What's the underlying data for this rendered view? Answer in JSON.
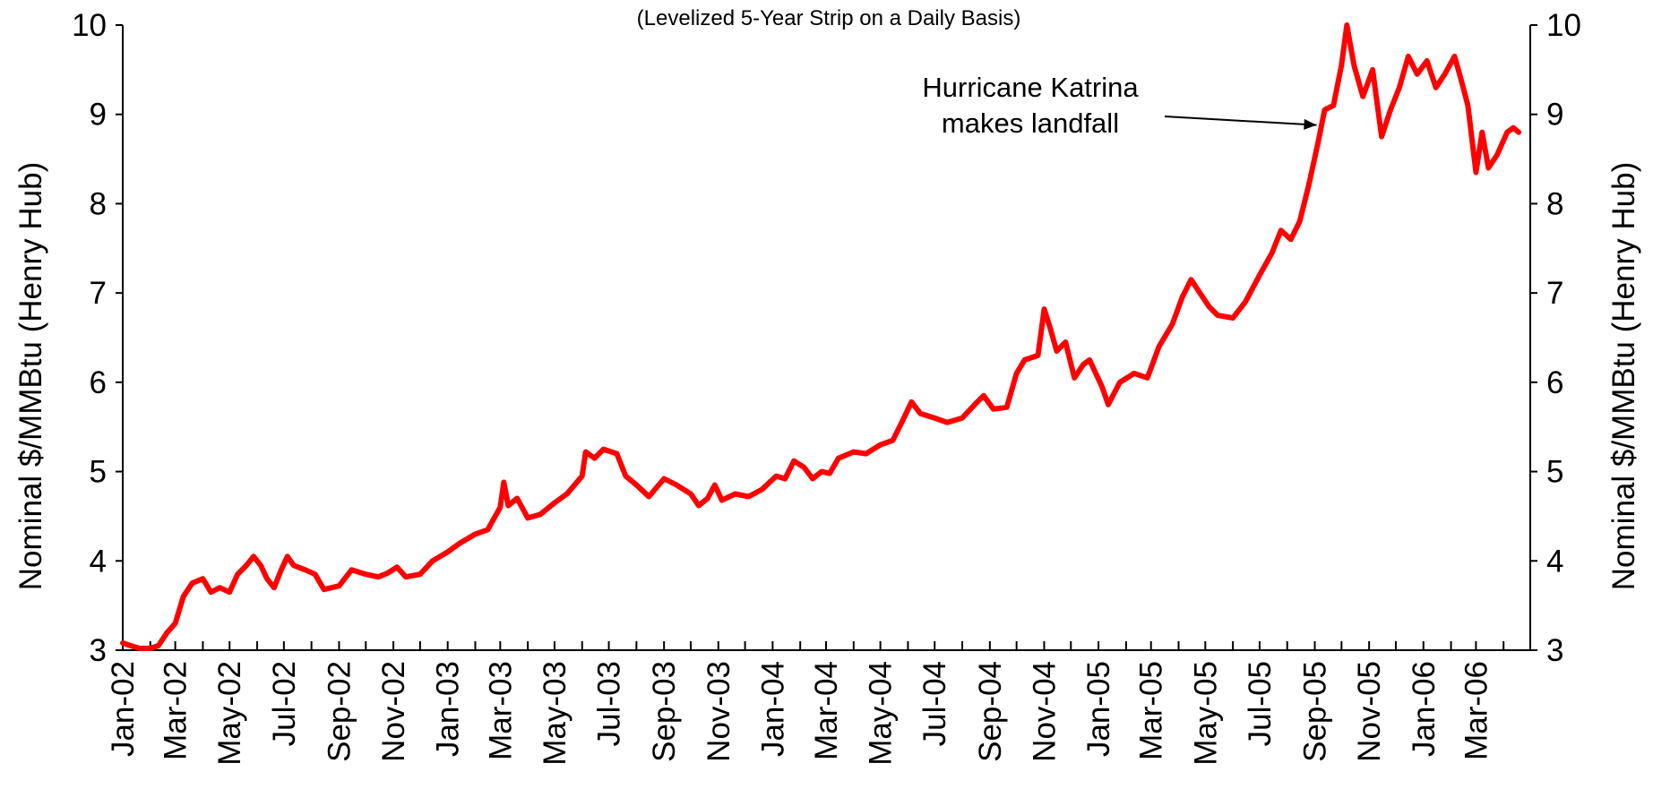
{
  "chart_data": {
    "type": "line",
    "subtitle": "(Levelized 5-Year Strip on a Daily Basis)",
    "ylabel": "Nominal $/MMBtu (Henry Hub)",
    "ylabel_right": "Nominal $/MMBtu (Henry Hub)",
    "xlabel": "",
    "ylim": [
      3,
      10
    ],
    "y_ticks": [
      "3",
      "4",
      "5",
      "6",
      "7",
      "8",
      "9",
      "10"
    ],
    "x_range": [
      "2002-01-01",
      "2006-05-01"
    ],
    "x_tick_labels": [
      "Jan-02",
      "Mar-02",
      "May-02",
      "Jul-02",
      "Sep-02",
      "Nov-02",
      "Jan-03",
      "Mar-03",
      "May-03",
      "Jul-03",
      "Sep-03",
      "Nov-03",
      "Jan-04",
      "Mar-04",
      "May-04",
      "Jul-04",
      "Sep-04",
      "Nov-04",
      "Jan-05",
      "Mar-05",
      "May-05",
      "Jul-05",
      "Sep-05",
      "Nov-05",
      "Jan-06",
      "Mar-06"
    ],
    "legend": "none",
    "grid": false,
    "series": [
      {
        "color": "#ff0000",
        "points": [
          [
            "2002-01-01",
            3.08
          ],
          [
            "2002-01-10",
            3.05
          ],
          [
            "2002-01-20",
            3.02
          ],
          [
            "2002-02-01",
            3.02
          ],
          [
            "2002-02-10",
            3.05
          ],
          [
            "2002-02-20",
            3.2
          ],
          [
            "2002-03-01",
            3.3
          ],
          [
            "2002-03-10",
            3.6
          ],
          [
            "2002-03-20",
            3.75
          ],
          [
            "2002-04-01",
            3.8
          ],
          [
            "2002-04-10",
            3.65
          ],
          [
            "2002-04-20",
            3.7
          ],
          [
            "2002-05-01",
            3.65
          ],
          [
            "2002-05-10",
            3.85
          ],
          [
            "2002-05-20",
            3.95
          ],
          [
            "2002-05-28",
            4.05
          ],
          [
            "2002-06-05",
            3.95
          ],
          [
            "2002-06-12",
            3.8
          ],
          [
            "2002-06-20",
            3.7
          ],
          [
            "2002-06-28",
            3.9
          ],
          [
            "2002-07-05",
            4.05
          ],
          [
            "2002-07-12",
            3.95
          ],
          [
            "2002-07-25",
            3.9
          ],
          [
            "2002-08-05",
            3.85
          ],
          [
            "2002-08-15",
            3.68
          ],
          [
            "2002-09-01",
            3.72
          ],
          [
            "2002-09-15",
            3.9
          ],
          [
            "2002-10-01",
            3.85
          ],
          [
            "2002-10-15",
            3.82
          ],
          [
            "2002-10-25",
            3.86
          ],
          [
            "2002-11-05",
            3.93
          ],
          [
            "2002-11-15",
            3.82
          ],
          [
            "2002-12-01",
            3.85
          ],
          [
            "2002-12-15",
            4.0
          ],
          [
            "2003-01-01",
            4.1
          ],
          [
            "2003-01-15",
            4.2
          ],
          [
            "2003-02-01",
            4.3
          ],
          [
            "2003-02-15",
            4.35
          ],
          [
            "2003-03-01",
            4.6
          ],
          [
            "2003-03-05",
            4.88
          ],
          [
            "2003-03-10",
            4.62
          ],
          [
            "2003-03-20",
            4.7
          ],
          [
            "2003-04-01",
            4.48
          ],
          [
            "2003-04-15",
            4.52
          ],
          [
            "2003-05-01",
            4.65
          ],
          [
            "2003-05-15",
            4.75
          ],
          [
            "2003-06-01",
            4.95
          ],
          [
            "2003-06-05",
            5.22
          ],
          [
            "2003-06-15",
            5.15
          ],
          [
            "2003-06-25",
            5.25
          ],
          [
            "2003-07-10",
            5.2
          ],
          [
            "2003-07-20",
            4.95
          ],
          [
            "2003-08-01",
            4.85
          ],
          [
            "2003-08-15",
            4.72
          ],
          [
            "2003-09-01",
            4.92
          ],
          [
            "2003-09-15",
            4.85
          ],
          [
            "2003-10-01",
            4.75
          ],
          [
            "2003-10-10",
            4.62
          ],
          [
            "2003-10-20",
            4.7
          ],
          [
            "2003-10-28",
            4.85
          ],
          [
            "2003-11-05",
            4.68
          ],
          [
            "2003-11-20",
            4.75
          ],
          [
            "2003-12-05",
            4.72
          ],
          [
            "2003-12-20",
            4.8
          ],
          [
            "2004-01-05",
            4.95
          ],
          [
            "2004-01-15",
            4.92
          ],
          [
            "2004-01-25",
            5.12
          ],
          [
            "2004-02-05",
            5.05
          ],
          [
            "2004-02-15",
            4.92
          ],
          [
            "2004-02-25",
            5.0
          ],
          [
            "2004-03-05",
            4.98
          ],
          [
            "2004-03-15",
            5.15
          ],
          [
            "2004-04-01",
            5.22
          ],
          [
            "2004-04-15",
            5.2
          ],
          [
            "2004-05-01",
            5.3
          ],
          [
            "2004-05-15",
            5.35
          ],
          [
            "2004-05-25",
            5.55
          ],
          [
            "2004-06-05",
            5.78
          ],
          [
            "2004-06-15",
            5.65
          ],
          [
            "2004-07-01",
            5.6
          ],
          [
            "2004-07-15",
            5.55
          ],
          [
            "2004-08-01",
            5.6
          ],
          [
            "2004-08-15",
            5.75
          ],
          [
            "2004-08-25",
            5.85
          ],
          [
            "2004-09-05",
            5.7
          ],
          [
            "2004-09-20",
            5.72
          ],
          [
            "2004-10-01",
            6.1
          ],
          [
            "2004-10-10",
            6.25
          ],
          [
            "2004-10-25",
            6.3
          ],
          [
            "2004-11-01",
            6.82
          ],
          [
            "2004-11-08",
            6.6
          ],
          [
            "2004-11-15",
            6.35
          ],
          [
            "2004-11-25",
            6.45
          ],
          [
            "2004-12-05",
            6.05
          ],
          [
            "2004-12-15",
            6.2
          ],
          [
            "2004-12-22",
            6.25
          ],
          [
            "2005-01-05",
            5.95
          ],
          [
            "2005-01-12",
            5.75
          ],
          [
            "2005-01-25",
            6.0
          ],
          [
            "2005-02-10",
            6.1
          ],
          [
            "2005-02-25",
            6.05
          ],
          [
            "2005-03-10",
            6.4
          ],
          [
            "2005-03-25",
            6.65
          ],
          [
            "2005-04-05",
            6.95
          ],
          [
            "2005-04-15",
            7.15
          ],
          [
            "2005-04-25",
            7.0
          ],
          [
            "2005-05-05",
            6.85
          ],
          [
            "2005-05-15",
            6.75
          ],
          [
            "2005-06-01",
            6.72
          ],
          [
            "2005-06-15",
            6.9
          ],
          [
            "2005-07-01",
            7.2
          ],
          [
            "2005-07-15",
            7.45
          ],
          [
            "2005-07-25",
            7.7
          ],
          [
            "2005-08-05",
            7.6
          ],
          [
            "2005-08-15",
            7.8
          ],
          [
            "2005-08-25",
            8.2
          ],
          [
            "2005-09-05",
            8.7
          ],
          [
            "2005-09-12",
            9.05
          ],
          [
            "2005-09-22",
            9.1
          ],
          [
            "2005-10-01",
            9.55
          ],
          [
            "2005-10-07",
            10.0
          ],
          [
            "2005-10-15",
            9.55
          ],
          [
            "2005-10-25",
            9.2
          ],
          [
            "2005-11-05",
            9.5
          ],
          [
            "2005-11-15",
            8.75
          ],
          [
            "2005-11-25",
            9.05
          ],
          [
            "2005-12-05",
            9.3
          ],
          [
            "2005-12-15",
            9.65
          ],
          [
            "2005-12-25",
            9.45
          ],
          [
            "2006-01-05",
            9.6
          ],
          [
            "2006-01-15",
            9.3
          ],
          [
            "2006-01-25",
            9.45
          ],
          [
            "2006-02-05",
            9.65
          ],
          [
            "2006-02-12",
            9.4
          ],
          [
            "2006-02-20",
            9.1
          ],
          [
            "2006-03-01",
            8.35
          ],
          [
            "2006-03-08",
            8.8
          ],
          [
            "2006-03-15",
            8.4
          ],
          [
            "2006-03-25",
            8.55
          ],
          [
            "2006-04-05",
            8.8
          ],
          [
            "2006-04-12",
            8.85
          ],
          [
            "2006-04-18",
            8.8
          ]
        ]
      }
    ],
    "annotations": [
      {
        "text_lines": [
          "Hurricane Katrina",
          "makes landfall"
        ],
        "points_to": [
          "2005-09-06",
          8.7
        ]
      }
    ]
  }
}
